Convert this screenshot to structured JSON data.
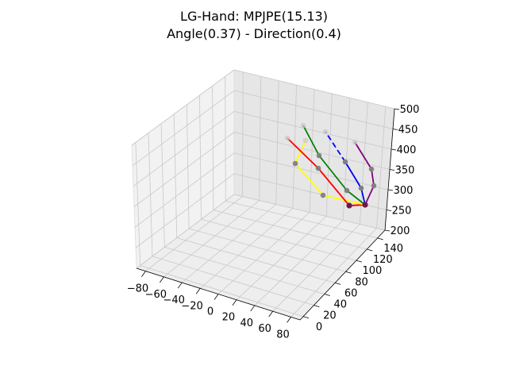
{
  "chart_data": {
    "type": "scatter",
    "title_lines": [
      "LG-Hand: MPJPE(15.13)",
      "Angle(0.37) - Direction(0.4)"
    ],
    "xlabel": "",
    "ylabel": "",
    "zlabel": "",
    "x_ticks": [
      "−80",
      "−60",
      "−40",
      "−20",
      "0",
      "20",
      "40",
      "60",
      "80"
    ],
    "y_ticks": [
      "0",
      "20",
      "40",
      "60",
      "80",
      "100",
      "120",
      "140"
    ],
    "z_ticks": [
      "200",
      "250",
      "300",
      "350",
      "400",
      "450",
      "500"
    ],
    "grid": true,
    "finger_colors": {
      "thumb": "#ffff00",
      "index": "#ff0000",
      "middle": "#008000",
      "ring": "#0000ff",
      "pinky": "#800080"
    },
    "joint_color": "#808080"
  }
}
